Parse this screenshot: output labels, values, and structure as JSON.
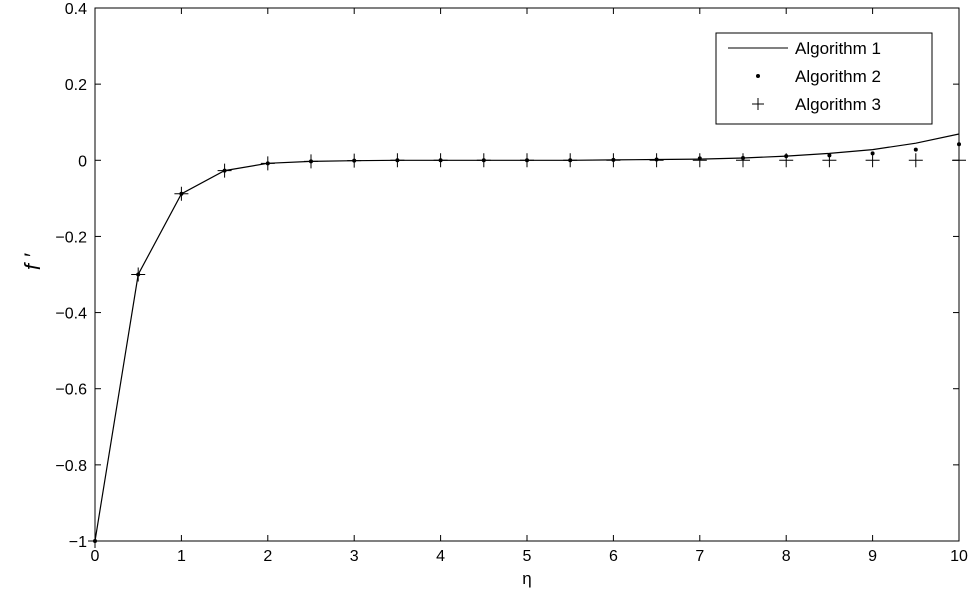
{
  "chart_data": {
    "type": "line",
    "title": "",
    "xlabel": "η",
    "ylabel": "f ′",
    "xlim": [
      0,
      10
    ],
    "ylim": [
      -1,
      0.4
    ],
    "xticks": [
      "0",
      "1",
      "2",
      "3",
      "4",
      "5",
      "6",
      "7",
      "8",
      "9",
      "10"
    ],
    "yticks": [
      "−1",
      "−0.8",
      "−0.6",
      "−0.4",
      "−0.2",
      "0",
      "0.2",
      "0.4"
    ],
    "ytick_values": [
      -1,
      -0.8,
      -0.6,
      -0.4,
      -0.2,
      0,
      0.2,
      0.4
    ],
    "grid": false,
    "legend_position": "top-right",
    "x": [
      0,
      0.5,
      1,
      1.5,
      2,
      2.5,
      3,
      3.5,
      4,
      4.5,
      5,
      5.5,
      6,
      6.5,
      7,
      7.5,
      8,
      8.5,
      9,
      9.5,
      10
    ],
    "series": [
      {
        "name": "Algorithm 1",
        "style": "line",
        "color": "#000000",
        "values": [
          -1,
          -0.3,
          -0.088,
          -0.027,
          -0.008,
          -0.003,
          -0.001,
          0,
          0,
          0,
          0,
          0,
          0.001,
          0.002,
          0.003,
          0.006,
          0.011,
          0.018,
          0.028,
          0.045,
          0.069
        ]
      },
      {
        "name": "Algorithm 2",
        "style": "dot",
        "color": "#000000",
        "values": [
          -1,
          -0.3,
          -0.088,
          -0.027,
          -0.008,
          -0.003,
          -0.001,
          0,
          0,
          0,
          0,
          0,
          0.001,
          0.002,
          0.005,
          0.006,
          0.011,
          0.013,
          0.018,
          0.028,
          0.042
        ]
      },
      {
        "name": "Algorithm 3",
        "style": "plus",
        "color": "#000000",
        "values": [
          -1,
          -0.3,
          -0.088,
          -0.027,
          -0.008,
          -0.003,
          -0.001,
          0,
          0,
          0,
          0,
          0,
          0,
          0,
          0,
          0,
          0,
          0,
          0,
          0,
          0
        ]
      }
    ]
  }
}
